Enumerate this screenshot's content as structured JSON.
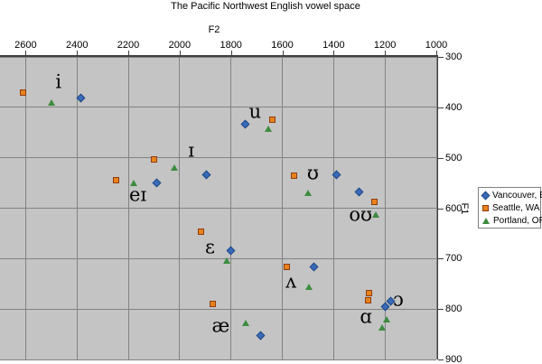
{
  "title": "The Pacific Northwest English vowel space",
  "colors": {
    "plot_background": "#C4C4C4",
    "gridline": "#828282",
    "axis_line": "#3F3F3F",
    "vancouver_blue": "#3A6BB8",
    "vancouver_blue_border": "#1E4785",
    "seattle_orange": "#E8821C",
    "seattle_orange_border": "#8F3D0F",
    "portland_green": "#3D8C3F"
  },
  "chart_data": {
    "type": "scatter",
    "title": "The Pacific Northwest English vowel space",
    "x_axis": {
      "label": "F2",
      "min": 1000,
      "max": 2700,
      "reversed": true,
      "position": "top",
      "ticks": [
        2600,
        2400,
        2200,
        2000,
        1800,
        1600,
        1400,
        1200,
        1000
      ]
    },
    "y_axis": {
      "label": "F1",
      "min": 300,
      "max": 900,
      "reversed": true,
      "position": "right",
      "ticks": [
        300,
        400,
        500,
        600,
        700,
        800,
        900
      ]
    },
    "grid": true,
    "legend_position": "right",
    "series": [
      {
        "name": "Vancouver, BC",
        "marker": "diamond",
        "color": "#3A6BB8",
        "points": [
          {
            "vowel": "i",
            "f2": 2384,
            "f1": 381
          },
          {
            "vowel": "ɪ",
            "f2": 1896,
            "f1": 533
          },
          {
            "vowel": "eɪ",
            "f2": 2089,
            "f1": 549
          },
          {
            "vowel": "ɛ",
            "f2": 1801,
            "f1": 685
          },
          {
            "vowel": "æ",
            "f2": 1685,
            "f1": 852
          },
          {
            "vowel": "u",
            "f2": 1745,
            "f1": 434
          },
          {
            "vowel": "ʊ",
            "f2": 1390,
            "f1": 533
          },
          {
            "vowel": "oʊ",
            "f2": 1302,
            "f1": 567
          },
          {
            "vowel": "ʌ",
            "f2": 1478,
            "f1": 717
          },
          {
            "vowel": "ɑ",
            "f2": 1200,
            "f1": 796
          },
          {
            "vowel": "ɔ",
            "f2": 1179,
            "f1": 784
          }
        ]
      },
      {
        "name": "Seattle, WA",
        "marker": "square",
        "color": "#E8821C",
        "points": [
          {
            "vowel": "i",
            "f2": 2612,
            "f1": 370
          },
          {
            "vowel": "ɪ",
            "f2": 2099,
            "f1": 504
          },
          {
            "vowel": "eɪ",
            "f2": 2247,
            "f1": 544
          },
          {
            "vowel": "ɛ",
            "f2": 1917,
            "f1": 647
          },
          {
            "vowel": "æ",
            "f2": 1871,
            "f1": 789
          },
          {
            "vowel": "u",
            "f2": 1639,
            "f1": 425
          },
          {
            "vowel": "ʊ",
            "f2": 1555,
            "f1": 536
          },
          {
            "vowel": "oʊ",
            "f2": 1242,
            "f1": 587
          },
          {
            "vowel": "ʌ",
            "f2": 1583,
            "f1": 717
          },
          {
            "vowel": "ɑ",
            "f2": 1267,
            "f1": 782
          },
          {
            "vowel": "ɔ",
            "f2": 1263,
            "f1": 768
          }
        ]
      },
      {
        "name": "Portland, OR",
        "marker": "triangle",
        "color": "#3D8C3F",
        "points": [
          {
            "vowel": "i",
            "f2": 2500,
            "f1": 390
          },
          {
            "vowel": "ɪ",
            "f2": 2022,
            "f1": 519
          },
          {
            "vowel": "eɪ",
            "f2": 2180,
            "f1": 549
          },
          {
            "vowel": "ɛ",
            "f2": 1818,
            "f1": 703
          },
          {
            "vowel": "æ",
            "f2": 1741,
            "f1": 827
          },
          {
            "vowel": "u",
            "f2": 1653,
            "f1": 443
          },
          {
            "vowel": "ʊ",
            "f2": 1499,
            "f1": 569
          },
          {
            "vowel": "oʊ",
            "f2": 1235,
            "f1": 613
          },
          {
            "vowel": "ʌ",
            "f2": 1495,
            "f1": 755
          },
          {
            "vowel": "ɑ",
            "f2": 1211,
            "f1": 836
          },
          {
            "vowel": "ɔ",
            "f2": 1193,
            "f1": 821
          }
        ]
      }
    ],
    "annotations": [
      {
        "text": "i",
        "f2": 2472,
        "f1": 352
      },
      {
        "text": "ɪ",
        "f2": 1955,
        "f1": 488
      },
      {
        "text": "eɪ",
        "f2": 2163,
        "f1": 576
      },
      {
        "text": "ɛ",
        "f2": 1882,
        "f1": 680
      },
      {
        "text": "æ",
        "f2": 1840,
        "f1": 835
      },
      {
        "text": "u",
        "f2": 1706,
        "f1": 411
      },
      {
        "text": "ʊ",
        "f2": 1481,
        "f1": 533
      },
      {
        "text": "oʊ",
        "f2": 1295,
        "f1": 615
      },
      {
        "text": "ʌ",
        "f2": 1566,
        "f1": 748
      },
      {
        "text": "ɑ",
        "f2": 1274,
        "f1": 818
      },
      {
        "text": "ɔ",
        "f2": 1148,
        "f1": 784
      }
    ]
  }
}
